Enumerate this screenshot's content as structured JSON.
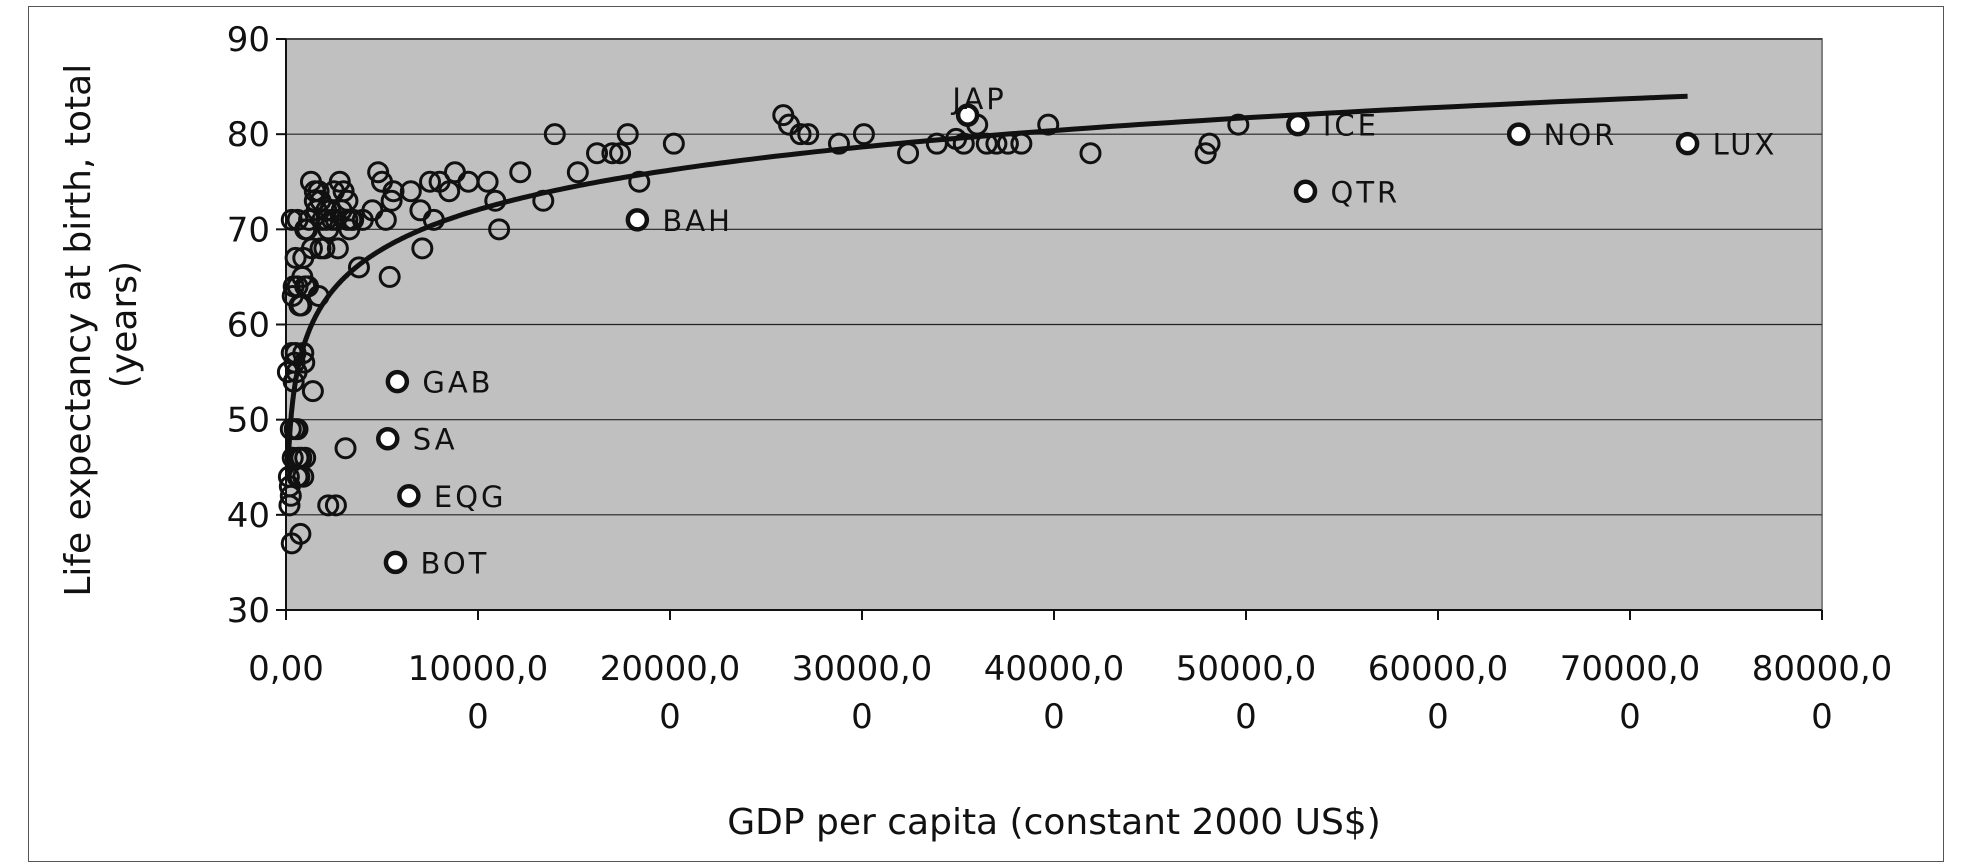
{
  "chart_data": {
    "type": "scatter",
    "xlabel": "GDP  per capita (constant 2000 US$)",
    "ylabel": "Life expectancy at birth, total (years)",
    "ylabel_lines": [
      "Life expectancy at birth, total",
      "(years)"
    ],
    "xlim": [
      0,
      80000
    ],
    "ylim": [
      30,
      90
    ],
    "grid": "horizontal",
    "legend": "none",
    "colors": {
      "plot_bg": "#c0c0c0",
      "marker_fill_highlight": "#ffffff",
      "marker_stroke": "#111111",
      "trend": "#111111",
      "gridline": "#222222"
    },
    "x_ticks": [
      0,
      10000,
      20000,
      30000,
      40000,
      50000,
      60000,
      70000,
      80000
    ],
    "x_tick_labels": [
      [
        "0,00"
      ],
      [
        "10000,0",
        "0"
      ],
      [
        "20000,0",
        "0"
      ],
      [
        "30000,0",
        "0"
      ],
      [
        "40000,0",
        "0"
      ],
      [
        "50000,0",
        "0"
      ],
      [
        "60000,0",
        "0"
      ],
      [
        "70000,0",
        "0"
      ],
      [
        "80000,0",
        "0"
      ]
    ],
    "y_ticks": [
      30,
      40,
      50,
      60,
      70,
      80,
      90
    ],
    "y_tick_labels": [
      "30",
      "40",
      "50",
      "60",
      "70",
      "80",
      "90"
    ],
    "trendline": {
      "type": "logarithmic",
      "a": 6.0,
      "b": 16.8,
      "x_start": 100,
      "x_end": 73000
    },
    "labeled_points": [
      {
        "label": "JAP",
        "x": 35500,
        "y": 82,
        "label_pos": "above"
      },
      {
        "label": "ICE",
        "x": 52700,
        "y": 81,
        "label_pos": "right"
      },
      {
        "label": "NOR",
        "x": 64200,
        "y": 80,
        "label_pos": "right"
      },
      {
        "label": "LUX",
        "x": 73000,
        "y": 79,
        "label_pos": "right"
      },
      {
        "label": "QTR",
        "x": 53100,
        "y": 74,
        "label_pos": "right"
      },
      {
        "label": "BAH",
        "x": 18300,
        "y": 71,
        "label_pos": "right"
      },
      {
        "label": "GAB",
        "x": 5800,
        "y": 54,
        "label_pos": "right"
      },
      {
        "label": "SA",
        "x": 5300,
        "y": 48,
        "label_pos": "right"
      },
      {
        "label": "EQG",
        "x": 6400,
        "y": 42,
        "label_pos": "right"
      },
      {
        "label": "BOT",
        "x": 5700,
        "y": 35,
        "label_pos": "right"
      }
    ],
    "points": [
      [
        100,
        55
      ],
      [
        150,
        44
      ],
      [
        200,
        43
      ],
      [
        250,
        42
      ],
      [
        180,
        41
      ],
      [
        300,
        37
      ],
      [
        350,
        63
      ],
      [
        400,
        64
      ],
      [
        450,
        56
      ],
      [
        500,
        57
      ],
      [
        550,
        55
      ],
      [
        600,
        49
      ],
      [
        650,
        46
      ],
      [
        700,
        44
      ],
      [
        750,
        38
      ],
      [
        800,
        62
      ],
      [
        850,
        65
      ],
      [
        900,
        57
      ],
      [
        950,
        56
      ],
      [
        1000,
        64
      ],
      [
        1100,
        70
      ],
      [
        1150,
        64
      ],
      [
        1200,
        71
      ],
      [
        1300,
        75
      ],
      [
        1350,
        68
      ],
      [
        1400,
        53
      ],
      [
        1500,
        74
      ],
      [
        1600,
        72
      ],
      [
        1700,
        63
      ],
      [
        1800,
        73
      ],
      [
        1900,
        71
      ],
      [
        2000,
        68
      ],
      [
        2100,
        72
      ],
      [
        2200,
        41
      ],
      [
        2300,
        72
      ],
      [
        2400,
        71
      ],
      [
        2500,
        74
      ],
      [
        2600,
        41
      ],
      [
        2700,
        68
      ],
      [
        2800,
        75
      ],
      [
        2900,
        72
      ],
      [
        3000,
        74
      ],
      [
        3100,
        47
      ],
      [
        3200,
        73
      ],
      [
        3300,
        70
      ],
      [
        3500,
        71
      ],
      [
        3800,
        66
      ],
      [
        4000,
        71
      ],
      [
        4500,
        72
      ],
      [
        4800,
        76
      ],
      [
        5000,
        75
      ],
      [
        5200,
        71
      ],
      [
        5400,
        65
      ],
      [
        5500,
        73
      ],
      [
        5600,
        74
      ],
      [
        6500,
        74
      ],
      [
        7000,
        72
      ],
      [
        7100,
        68
      ],
      [
        7500,
        75
      ],
      [
        7700,
        71
      ],
      [
        8000,
        75
      ],
      [
        8500,
        74
      ],
      [
        8800,
        76
      ],
      [
        9500,
        75
      ],
      [
        10500,
        75
      ],
      [
        10900,
        73
      ],
      [
        11100,
        70
      ],
      [
        12200,
        76
      ],
      [
        13400,
        73
      ],
      [
        14000,
        80
      ],
      [
        15200,
        76
      ],
      [
        16200,
        78
      ],
      [
        17000,
        78
      ],
      [
        17400,
        78
      ],
      [
        17800,
        80
      ],
      [
        18400,
        75
      ],
      [
        20200,
        79
      ],
      [
        25900,
        82
      ],
      [
        26200,
        81
      ],
      [
        26800,
        80
      ],
      [
        27200,
        80
      ],
      [
        28800,
        79
      ],
      [
        30100,
        80
      ],
      [
        32400,
        78
      ],
      [
        33900,
        79
      ],
      [
        34900,
        79.5
      ],
      [
        35300,
        79
      ],
      [
        36000,
        81
      ],
      [
        36500,
        79
      ],
      [
        37000,
        79
      ],
      [
        37600,
        79
      ],
      [
        38300,
        79
      ],
      [
        39700,
        81
      ],
      [
        41900,
        78
      ],
      [
        47900,
        78
      ],
      [
        48100,
        79
      ],
      [
        49600,
        81
      ],
      [
        300,
        71
      ],
      [
        500,
        67
      ],
      [
        600,
        64
      ],
      [
        700,
        62
      ],
      [
        900,
        67
      ],
      [
        300,
        57
      ],
      [
        400,
        54
      ],
      [
        250,
        49
      ],
      [
        450,
        49
      ],
      [
        350,
        46
      ],
      [
        800,
        46
      ],
      [
        1000,
        46
      ],
      [
        900,
        44
      ],
      [
        600,
        44
      ],
      [
        1500,
        73
      ],
      [
        1700,
        74
      ],
      [
        2100,
        71
      ],
      [
        2200,
        70
      ],
      [
        2600,
        71
      ],
      [
        3200,
        71
      ],
      [
        3400,
        71
      ],
      [
        1800,
        68
      ],
      [
        600,
        71
      ],
      [
        1000,
        70
      ]
    ]
  }
}
